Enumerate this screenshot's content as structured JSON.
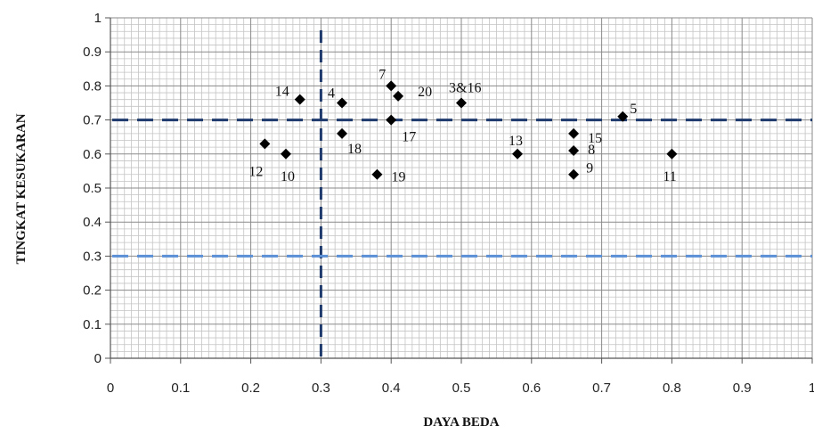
{
  "chart_data": {
    "type": "scatter",
    "xlabel": "DAYA BEDA",
    "ylabel": "TINGKAT KESUKARAN",
    "xlim": [
      0,
      1
    ],
    "ylim": [
      0,
      1
    ],
    "x_ticks": [
      "0",
      "0.1",
      "0.2",
      "0.3",
      "0.4",
      "0.5",
      "0.6",
      "0.7",
      "0.8",
      "0.9",
      "1"
    ],
    "y_ticks": [
      "0",
      "0.1",
      "0.2",
      "0.3",
      "0.4",
      "0.5",
      "0.6",
      "0.7",
      "0.8",
      "0.9",
      "1"
    ],
    "grid": true,
    "marker": "diamond",
    "reference_lines": [
      {
        "axis": "x",
        "value": 0.3,
        "style": "dashed",
        "color": "#1f3b6e"
      },
      {
        "axis": "y",
        "value": 0.7,
        "style": "dashed",
        "color": "#1f3b6e"
      },
      {
        "axis": "y",
        "value": 0.3,
        "style": "dashed",
        "color": "#5b8fd6"
      }
    ],
    "points": [
      {
        "label": "14",
        "x": 0.27,
        "y": 0.76
      },
      {
        "label": "4",
        "x": 0.33,
        "y": 0.75
      },
      {
        "label": "7",
        "x": 0.4,
        "y": 0.8
      },
      {
        "label": "20",
        "x": 0.41,
        "y": 0.77
      },
      {
        "label": "3&16",
        "x": 0.5,
        "y": 0.75
      },
      {
        "label": "5",
        "x": 0.73,
        "y": 0.71
      },
      {
        "label": "17",
        "x": 0.4,
        "y": 0.7
      },
      {
        "label": "18",
        "x": 0.33,
        "y": 0.66
      },
      {
        "label": "12",
        "x": 0.22,
        "y": 0.63
      },
      {
        "label": "10",
        "x": 0.25,
        "y": 0.6
      },
      {
        "label": "19",
        "x": 0.38,
        "y": 0.54
      },
      {
        "label": "13",
        "x": 0.58,
        "y": 0.6
      },
      {
        "label": "15",
        "x": 0.66,
        "y": 0.66
      },
      {
        "label": "8",
        "x": 0.66,
        "y": 0.61
      },
      {
        "label": "9",
        "x": 0.66,
        "y": 0.54
      },
      {
        "label": "11",
        "x": 0.8,
        "y": 0.6
      }
    ]
  }
}
